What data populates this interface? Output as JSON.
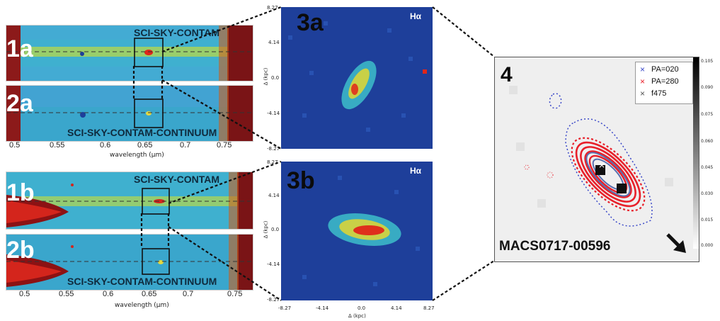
{
  "panels": {
    "p1a": {
      "tag": "1a",
      "banner": "SCI-SKY-CONTAM"
    },
    "p2a": {
      "tag": "2a",
      "banner": "SCI-SKY-CONTAM-CONTINUUM"
    },
    "p1b": {
      "tag": "1b",
      "banner": "SCI-SKY-CONTAM"
    },
    "p2b": {
      "tag": "2b",
      "banner": "SCI-SKY-CONTAM-CONTINUUM"
    },
    "p3a": {
      "tag": "3a",
      "line": "Hα"
    },
    "p3b": {
      "tag": "3b",
      "line": "Hα"
    },
    "p4": {
      "tag": "4",
      "object": "MACS0717-00596",
      "legend": [
        "PA=020",
        "PA=280",
        "f475"
      ],
      "colorbar_ticks": [
        "0.105",
        "0.090",
        "0.075",
        "0.060",
        "0.045",
        "0.030",
        "0.015",
        "0.000"
      ]
    }
  },
  "spectrum_axis": {
    "ticks": [
      "0.5",
      "0.55",
      "0.6",
      "0.65",
      "0.7",
      "0.75"
    ],
    "ticks_b": [
      "0.5",
      "0.55",
      "0.6",
      "0.65",
      "0.7",
      "0.75"
    ],
    "xlabel": "wavelength (μm)"
  },
  "map_axis": {
    "y_ticks": [
      "8.27",
      "4.14",
      "0.0",
      "-4.14",
      "-8.27"
    ],
    "x_ticks": [
      "-8.27",
      "-4.14",
      "0.0",
      "4.14",
      "8.27"
    ],
    "ylabel": "Δ (kpc)",
    "xlabel": "Δ (kpc)"
  },
  "colors": {
    "spectrum_bg": "#3fb0cf",
    "noise_dark": "#7a1416",
    "map_bg": "#1e3f9a",
    "emission_red": "#e0261a",
    "contour_red": "#e8202a",
    "contour_blue": "#3a48c8"
  }
}
